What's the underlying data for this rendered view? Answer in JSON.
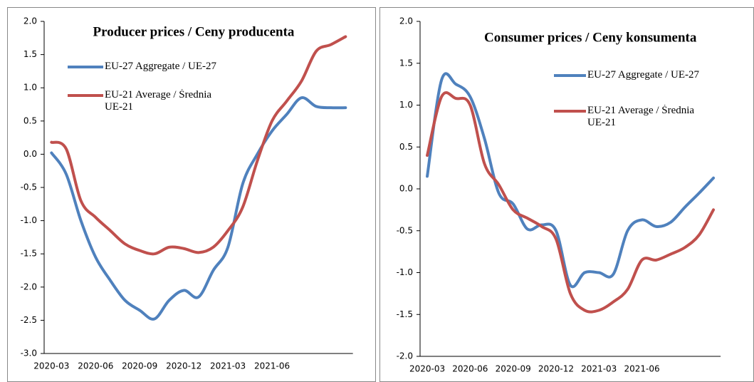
{
  "chart_data": [
    {
      "type": "line",
      "title": "Producer prices / Ceny producenta",
      "categories": [
        "2020-03",
        null,
        null,
        "2020-06",
        null,
        null,
        "2020-09",
        null,
        null,
        "2020-12",
        null,
        null,
        "2021-03",
        null,
        null,
        "2021-06",
        null,
        null,
        null,
        null,
        null
      ],
      "series": [
        {
          "name": "EU-27 Aggregate / UE-27",
          "color": "#4f81bd",
          "values": [
            0.02,
            -0.3,
            -1.0,
            -1.55,
            -1.9,
            -2.2,
            -2.35,
            -2.48,
            -2.2,
            -2.05,
            -2.15,
            -1.75,
            -1.4,
            -0.45,
            0.0,
            0.35,
            0.6,
            0.85,
            0.72,
            0.7,
            0.7
          ]
        },
        {
          "name": "EU-21 Average / Średnia UE-21",
          "color": "#c0504d",
          "values": [
            0.18,
            0.08,
            -0.7,
            -0.95,
            -1.15,
            -1.35,
            -1.45,
            -1.5,
            -1.4,
            -1.42,
            -1.48,
            -1.4,
            -1.15,
            -0.8,
            -0.1,
            0.5,
            0.8,
            1.1,
            1.55,
            1.65,
            1.77
          ]
        }
      ],
      "ylim": [
        -3.0,
        2.0
      ],
      "yticks": [
        {
          "value": -3,
          "label": "-3.0"
        },
        {
          "value": -2.5,
          "label": "-2.5"
        },
        {
          "value": -2,
          "label": "-2.0"
        },
        {
          "value": -1.5,
          "label": "-1.5"
        },
        {
          "value": -1,
          "label": "-1.0"
        },
        {
          "value": -0.5,
          "label": "-0.5"
        },
        {
          "value": 0,
          "label": "0.0"
        },
        {
          "value": 0.5,
          "label": "0.5"
        },
        {
          "value": 1,
          "label": "1.0"
        },
        {
          "value": 1.5,
          "label": "1.5"
        },
        {
          "value": 2,
          "label": "2.0"
        }
      ],
      "grid": false
    },
    {
      "type": "line",
      "title": "Consumer prices / Ceny konsumenta",
      "categories": [
        "2020-03",
        null,
        null,
        "2020-06",
        null,
        null,
        "2020-09",
        null,
        null,
        "2020-12",
        null,
        null,
        "2021-03",
        null,
        null,
        "2021-06",
        null,
        null,
        null,
        null,
        null
      ],
      "series": [
        {
          "name": "EU-27 Aggregate / UE-27",
          "color": "#4f81bd",
          "values": [
            0.15,
            1.3,
            1.25,
            1.1,
            0.6,
            -0.05,
            -0.18,
            -0.48,
            -0.43,
            -0.5,
            -1.15,
            -1.0,
            -1.0,
            -1.02,
            -0.5,
            -0.37,
            -0.45,
            -0.4,
            -0.22,
            -0.05,
            0.13
          ]
        },
        {
          "name": "EU-21 Average / Średnia UE-21",
          "color": "#c0504d",
          "values": [
            0.4,
            1.1,
            1.08,
            1.0,
            0.3,
            0.05,
            -0.25,
            -0.35,
            -0.45,
            -0.6,
            -1.25,
            -1.45,
            -1.45,
            -1.35,
            -1.2,
            -0.85,
            -0.85,
            -0.78,
            -0.7,
            -0.55,
            -0.25
          ]
        }
      ],
      "ylim": [
        -2.0,
        2.0
      ],
      "yticks": [
        {
          "value": -2,
          "label": "-2.0"
        },
        {
          "value": -1.5,
          "label": "-1.5"
        },
        {
          "value": -1,
          "label": "-1.0"
        },
        {
          "value": -0.5,
          "label": "-0.5"
        },
        {
          "value": 0,
          "label": "0.0"
        },
        {
          "value": 0.5,
          "label": "0.5"
        },
        {
          "value": 1,
          "label": "1.0"
        },
        {
          "value": 1.5,
          "label": "1.5"
        },
        {
          "value": 2,
          "label": "2.0"
        }
      ],
      "grid": false
    }
  ]
}
